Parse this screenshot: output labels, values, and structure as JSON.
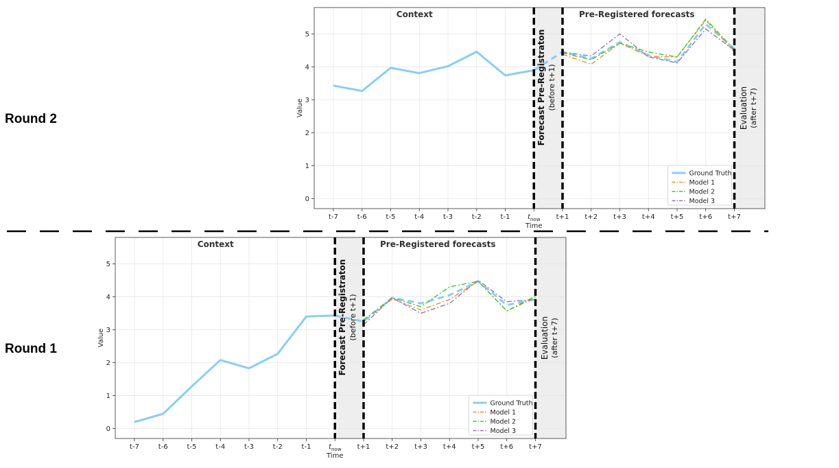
{
  "round_labels": {
    "round2": "Round 2",
    "round1": "Round 1"
  },
  "colors": {
    "ground_truth": "#87CEFA",
    "model1": "#FF8C1A",
    "model2": "#32CD32",
    "model3": "#9370DB",
    "shade": "#EEEEEE",
    "grid": "#E6E6E6"
  },
  "chart_data": [
    {
      "name": "Round 2",
      "type": "line",
      "xlabel": "Time",
      "ylabel": "Value",
      "ylim": [
        -0.3,
        5.8
      ],
      "yticks": [
        0,
        1,
        2,
        3,
        4,
        5
      ],
      "xticks": [
        "t-7",
        "t-6",
        "t-5",
        "t-4",
        "t-3",
        "t-2",
        "t-1",
        "t_now",
        "t+1",
        "t+2",
        "t+3",
        "t+4",
        "t+5",
        "t+6",
        "t+7"
      ],
      "tnow_label": {
        "base": "t",
        "sub": "now"
      },
      "regions": {
        "context_title": "Context",
        "forecast_title": "Pre-Registered forecasts",
        "prereg_label": "Forecast Pre-Registraton",
        "prereg_sub": "(before t+1)",
        "eval_label": "Evaluation",
        "eval_sub": "(after t+7)"
      },
      "legend": [
        "Ground Truth",
        "Model 1",
        "Model 2",
        "Model 3"
      ],
      "series": [
        {
          "name": "Ground Truth",
          "x": [
            0,
            1,
            2,
            3,
            4,
            5,
            6,
            7
          ],
          "values": [
            3.43,
            3.27,
            3.97,
            3.81,
            4.02,
            4.46,
            3.74,
            3.9
          ]
        },
        {
          "name": "Ground Truth (forecast)",
          "x": [
            7,
            8,
            9,
            10,
            11,
            12,
            13,
            14
          ],
          "values": [
            3.9,
            4.45,
            4.25,
            4.75,
            4.35,
            4.15,
            5.3,
            4.55
          ]
        },
        {
          "name": "Model 1",
          "x": [
            8,
            9,
            10,
            11,
            12,
            13,
            14
          ],
          "values": [
            4.38,
            4.08,
            4.72,
            4.32,
            4.3,
            5.42,
            4.45
          ]
        },
        {
          "name": "Model 2",
          "x": [
            8,
            9,
            10,
            11,
            12,
            13,
            14
          ],
          "values": [
            4.42,
            4.22,
            4.72,
            4.45,
            4.3,
            5.45,
            4.52
          ]
        },
        {
          "name": "Model 3",
          "x": [
            8,
            9,
            10,
            11,
            12,
            13,
            14
          ],
          "values": [
            4.45,
            4.33,
            5.0,
            4.3,
            4.12,
            5.15,
            4.5
          ]
        }
      ]
    },
    {
      "name": "Round 1",
      "type": "line",
      "xlabel": "Time",
      "ylabel": "Value",
      "ylim": [
        -0.3,
        5.8
      ],
      "yticks": [
        0,
        1,
        2,
        3,
        4,
        5
      ],
      "xticks": [
        "t-7",
        "t-6",
        "t-5",
        "t-4",
        "t-3",
        "t-2",
        "t-1",
        "t_now",
        "t+1",
        "t+2",
        "t+3",
        "t+4",
        "t+5",
        "t+6",
        "t+7"
      ],
      "tnow_label": {
        "base": "t",
        "sub": "now"
      },
      "regions": {
        "context_title": "Context",
        "forecast_title": "Pre-Registered forecasts",
        "prereg_label": "Forecast Pre-Registraton",
        "prereg_sub": "(before t+1)",
        "eval_label": "Evaluation",
        "eval_sub": "(after t+7)"
      },
      "legend": [
        "Ground Truth",
        "Model 1",
        "Model 2",
        "Model 3"
      ],
      "series": [
        {
          "name": "Ground Truth",
          "x": [
            0,
            1,
            2,
            3,
            4,
            5,
            6,
            7
          ],
          "values": [
            0.2,
            0.45,
            1.28,
            2.08,
            1.83,
            2.27,
            3.4,
            3.43
          ]
        },
        {
          "name": "Ground Truth (forecast)",
          "x": [
            7,
            8,
            9,
            10,
            11,
            12,
            13,
            14
          ],
          "values": [
            3.43,
            3.25,
            3.97,
            3.8,
            4.05,
            4.47,
            3.75,
            3.92
          ]
        },
        {
          "name": "Model 1",
          "x": [
            8,
            9,
            10,
            11,
            12,
            13,
            14
          ],
          "values": [
            3.3,
            3.93,
            3.6,
            3.92,
            4.47,
            3.57,
            3.97
          ]
        },
        {
          "name": "Model 2",
          "x": [
            8,
            9,
            10,
            11,
            12,
            13,
            14
          ],
          "values": [
            3.3,
            3.97,
            3.7,
            4.3,
            4.47,
            3.57,
            4.02
          ]
        },
        {
          "name": "Model 3",
          "x": [
            8,
            9,
            10,
            11,
            12,
            13,
            14
          ],
          "values": [
            3.15,
            3.97,
            3.5,
            3.8,
            4.5,
            3.85,
            3.92
          ]
        }
      ]
    }
  ]
}
